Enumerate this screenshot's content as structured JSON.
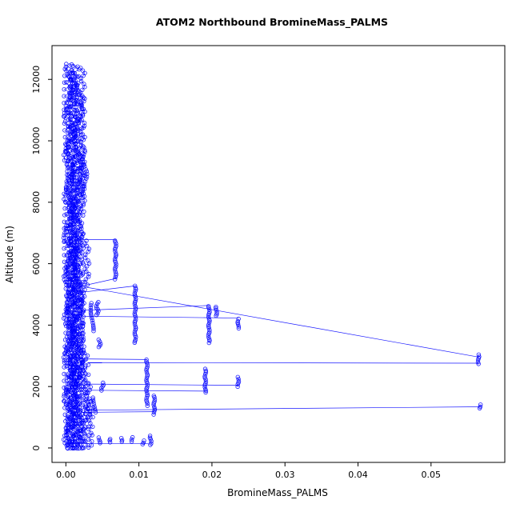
{
  "chart_data": {
    "type": "scatter",
    "title": "ATOM2 Northbound BromineMass_PALMS",
    "xlabel": "BromineMass_PALMS",
    "ylabel": "Altitude (m)",
    "marker": "open-circle",
    "point_color": "#0000ff",
    "line_color": "#0000ff",
    "axis_color": "#000000",
    "grid": false,
    "legend": null,
    "connect_points": true,
    "xlim": [
      -0.0019,
      0.0601
    ],
    "ylim": [
      -470,
      13100
    ],
    "x_ticks": [
      0,
      0.01,
      0.02,
      0.03,
      0.04,
      0.05
    ],
    "x_tick_labels": [
      "0.00",
      "0.01",
      "0.02",
      "0.03",
      "0.04",
      "0.05"
    ],
    "y_ticks": [
      0,
      2000,
      4000,
      6000,
      8000,
      10000,
      12000
    ],
    "y_tick_labels": [
      "0",
      "2000",
      "4000",
      "6000",
      "8000",
      "10000",
      "12000"
    ],
    "profiles": [
      {
        "x": 0.0002,
        "y_from": 0,
        "y_to": 12500,
        "step": 110,
        "jitter": 0.00045
      },
      {
        "x": 0.0005,
        "y_from": 0,
        "y_to": 12550,
        "step": 105,
        "jitter": 0.0005
      },
      {
        "x": 0.0008,
        "y_from": 0,
        "y_to": 12400,
        "step": 110,
        "jitter": 0.0005
      },
      {
        "x": 0.0011,
        "y_from": 0,
        "y_to": 12500,
        "step": 100,
        "jitter": 0.0005
      },
      {
        "x": 0.0014,
        "y_from": 0,
        "y_to": 12450,
        "step": 110,
        "jitter": 0.0005
      },
      {
        "x": 0.0017,
        "y_from": 0,
        "y_to": 12300,
        "step": 115,
        "jitter": 0.0005
      },
      {
        "x": 0.002,
        "y_from": 0,
        "y_to": 11600,
        "step": 120,
        "jitter": 0.0004
      },
      {
        "x": 0.0023,
        "y_from": 7700,
        "y_to": 12400,
        "step": 90,
        "jitter": 0.0003
      },
      {
        "x": 0.0023,
        "y_from": 0,
        "y_to": 5200,
        "step": 110,
        "jitter": 0.0004
      },
      {
        "x": 0.0026,
        "y_from": 8200,
        "y_to": 9700,
        "step": 80,
        "jitter": 0.0003
      },
      {
        "x": 0.0027,
        "y_from": 0,
        "y_to": 3100,
        "step": 100,
        "jitter": 0.0004
      },
      {
        "x": 0.0007,
        "y_from": 0,
        "y_to": 8000,
        "step": 95,
        "jitter": 0.0006
      },
      {
        "x": 0.0013,
        "y_from": 0,
        "y_to": 9500,
        "step": 100,
        "jitter": 0.0006
      },
      {
        "x": 0.0018,
        "y_from": 2000,
        "y_to": 7000,
        "step": 90,
        "jitter": 0.0006
      },
      {
        "x": 0.0031,
        "y_from": 900,
        "y_to": 2100,
        "step": 90,
        "jitter": 0.0003
      },
      {
        "x": 0.0034,
        "y_from": 0,
        "y_to": 1500,
        "step": 100,
        "jitter": 0.0003
      },
      {
        "x": 0.0036,
        "y_from": 3800,
        "y_to": 4750,
        "step": 70,
        "jitter": 0.0002
      },
      {
        "x": 0.0043,
        "y_from": 4330,
        "y_to": 4760,
        "step": 60,
        "jitter": 0.00015
      },
      {
        "x": 0.0046,
        "y_from": 3280,
        "y_to": 3520,
        "step": 60,
        "jitter": 0.00015
      },
      {
        "x": 0.005,
        "y_from": 1880,
        "y_to": 2120,
        "step": 60,
        "jitter": 0.00015
      },
      {
        "x": 0.0039,
        "y_from": 1150,
        "y_to": 1650,
        "step": 70,
        "jitter": 0.0002
      },
      {
        "x": 0.0029,
        "y_from": 5300,
        "y_to": 6800,
        "step": 90,
        "jitter": 0.0003
      },
      {
        "x": 0.0004,
        "y_from": 0,
        "y_to": 12000,
        "step": 140,
        "jitter": 0.0007
      },
      {
        "x": 0.001,
        "y_from": 0,
        "y_to": 12200,
        "step": 130,
        "jitter": 0.0007
      }
    ],
    "outlier_strands": [
      {
        "x": 0.0068,
        "y_from": 5500,
        "y_to": 6800,
        "step": 60,
        "jitter": 8e-05
      },
      {
        "x": 0.0095,
        "y_from": 3420,
        "y_to": 5280,
        "step": 60,
        "jitter": 8e-05
      },
      {
        "x": 0.0111,
        "y_from": 1380,
        "y_to": 2900,
        "step": 60,
        "jitter": 8e-05
      },
      {
        "x": 0.0121,
        "y_from": 1100,
        "y_to": 1700,
        "step": 60,
        "jitter": 8e-05
      },
      {
        "x": 0.0191,
        "y_from": 1800,
        "y_to": 2620,
        "step": 60,
        "jitter": 8e-05
      },
      {
        "x": 0.0196,
        "y_from": 3420,
        "y_to": 4650,
        "step": 60,
        "jitter": 8e-05
      },
      {
        "x": 0.0206,
        "y_from": 4300,
        "y_to": 4640,
        "step": 60,
        "jitter": 8e-05
      },
      {
        "x": 0.0236,
        "y_from": 3900,
        "y_to": 4250,
        "step": 60,
        "jitter": 8e-05
      },
      {
        "x": 0.0236,
        "y_from": 2000,
        "y_to": 2320,
        "step": 60,
        "jitter": 8e-05
      },
      {
        "x": 0.0565,
        "y_from": 2740,
        "y_to": 3060,
        "step": 60,
        "jitter": 8e-05
      },
      {
        "x": 0.0567,
        "y_from": 1290,
        "y_to": 1420,
        "step": 60,
        "jitter": 8e-05
      },
      {
        "x": 0.0046,
        "y_from": 150,
        "y_to": 350,
        "step": 60,
        "jitter": 0.0001
      },
      {
        "x": 0.0061,
        "y_from": 180,
        "y_to": 300,
        "step": 60,
        "jitter": 0.0001
      },
      {
        "x": 0.0076,
        "y_from": 200,
        "y_to": 330,
        "step": 60,
        "jitter": 0.0001
      },
      {
        "x": 0.0091,
        "y_from": 220,
        "y_to": 340,
        "step": 60,
        "jitter": 0.0001
      },
      {
        "x": 0.0106,
        "y_from": 120,
        "y_to": 260,
        "step": 60,
        "jitter": 0.0001
      },
      {
        "x": 0.0116,
        "y_from": 100,
        "y_to": 420,
        "step": 60,
        "jitter": 0.0001
      }
    ],
    "connectors": [
      [
        0.0016,
        6780,
        0.0069,
        6780
      ],
      [
        0.0069,
        5520,
        0.0018,
        5250
      ],
      [
        0.0024,
        5250,
        0.0565,
        2960
      ],
      [
        0.0565,
        2760,
        0.003,
        2780
      ],
      [
        0.0567,
        1340,
        0.0028,
        1230
      ],
      [
        0.0196,
        4640,
        0.0022,
        4480
      ],
      [
        0.0192,
        1850,
        0.0024,
        1880
      ],
      [
        0.0236,
        4230,
        0.0021,
        4290
      ],
      [
        0.0236,
        2040,
        0.0024,
        2080
      ],
      [
        0.0111,
        2880,
        0.002,
        2900
      ],
      [
        0.0121,
        1180,
        0.0022,
        1160
      ],
      [
        0.0096,
        5280,
        0.0019,
        5060
      ],
      [
        0.0113,
        140,
        0.0008,
        140
      ]
    ]
  }
}
